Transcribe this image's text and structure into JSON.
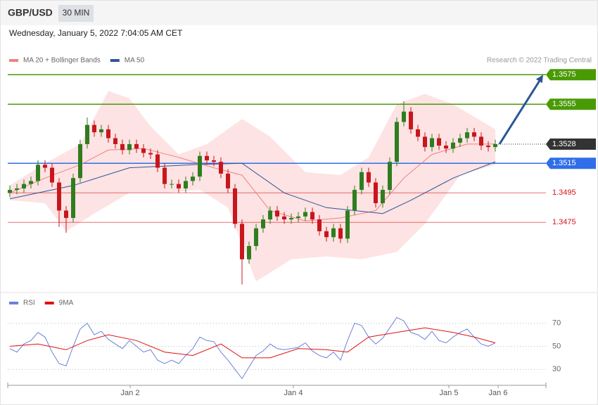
{
  "header": {
    "symbol": "GBP/USD",
    "interval": "30 MIN",
    "timestamp": "Wednesday, January 5, 2022 7:04:05 AM CET"
  },
  "chart_data": [
    {
      "type": "candlestick",
      "credit": "Research © 2022 Trading Central",
      "xlim": [
        -0.3,
        76.2
      ],
      "ylim": [
        1.3428,
        1.3597
      ],
      "xticks": [
        {
          "value": 17.1,
          "label": "Jan 2"
        },
        {
          "value": 40.3,
          "label": "Jan 4"
        },
        {
          "value": 62.4,
          "label": "Jan 5"
        },
        {
          "value": 69.4,
          "label": "Jan 6"
        }
      ],
      "up_color": "#2f7d1f",
      "down_color": "#c8161d",
      "candles": {
        "open": [
          1.3495,
          1.3497,
          1.3498,
          1.3501,
          1.3503,
          1.3514,
          1.3512,
          1.3502,
          1.3483,
          1.3478,
          1.3505,
          1.3528,
          1.3541,
          1.3536,
          1.3538,
          1.3532,
          1.3528,
          1.3524,
          1.3528,
          1.3525,
          1.3522,
          1.3521,
          1.3512,
          1.3501,
          1.3501,
          1.3498,
          1.3503,
          1.3506,
          1.352,
          1.3517,
          1.3516,
          1.3508,
          1.3498,
          1.3474,
          1.345,
          1.3459,
          1.3471,
          1.3477,
          1.3483,
          1.3479,
          1.3477,
          1.3478,
          1.3479,
          1.3482,
          1.3477,
          1.3469,
          1.3465,
          1.3471,
          1.3464,
          1.3483,
          1.3497,
          1.3509,
          1.3502,
          1.3488,
          1.3497,
          1.3516,
          1.3543,
          1.355,
          1.3538,
          1.3533,
          1.3526,
          1.3532,
          1.3527,
          1.3525,
          1.3529,
          1.3532,
          1.3536,
          1.3533,
          1.3527,
          1.3526
        ],
        "high": [
          1.35,
          1.3501,
          1.3504,
          1.3506,
          1.3517,
          1.3517,
          1.3515,
          1.3505,
          1.3486,
          1.3508,
          1.3531,
          1.3546,
          1.3544,
          1.3541,
          1.3541,
          1.3535,
          1.3531,
          1.3531,
          1.3531,
          1.3528,
          1.3525,
          1.3524,
          1.3515,
          1.3504,
          1.3504,
          1.3506,
          1.3509,
          1.3523,
          1.3523,
          1.352,
          1.3519,
          1.3511,
          1.3501,
          1.3477,
          1.3462,
          1.3474,
          1.348,
          1.3486,
          1.3486,
          1.3482,
          1.3481,
          1.3482,
          1.3485,
          1.3485,
          1.348,
          1.3472,
          1.3474,
          1.3474,
          1.3486,
          1.35,
          1.3512,
          1.3512,
          1.3505,
          1.35,
          1.3519,
          1.3546,
          1.3557,
          1.3553,
          1.3541,
          1.3536,
          1.3535,
          1.3535,
          1.353,
          1.3532,
          1.3535,
          1.3539,
          1.3539,
          1.3536,
          1.353,
          1.3531
        ],
        "low": [
          1.3492,
          1.3494,
          1.3495,
          1.3498,
          1.35,
          1.3509,
          1.3499,
          1.3472,
          1.3468,
          1.3475,
          1.3502,
          1.3525,
          1.3533,
          1.3533,
          1.3529,
          1.3525,
          1.3521,
          1.3521,
          1.3522,
          1.3519,
          1.3518,
          1.3509,
          1.3498,
          1.3498,
          1.3495,
          1.3495,
          1.35,
          1.3503,
          1.3514,
          1.3513,
          1.3505,
          1.3495,
          1.3471,
          1.3433,
          1.3447,
          1.3456,
          1.3468,
          1.3474,
          1.3476,
          1.3474,
          1.3474,
          1.3475,
          1.3476,
          1.3474,
          1.3466,
          1.3462,
          1.3462,
          1.3461,
          1.3461,
          1.348,
          1.3494,
          1.3499,
          1.3485,
          1.3485,
          1.3494,
          1.3513,
          1.354,
          1.3535,
          1.353,
          1.3523,
          1.3523,
          1.3524,
          1.3522,
          1.3522,
          1.3526,
          1.3529,
          1.353,
          1.3524,
          1.3523,
          1.3523
        ],
        "close": [
          1.3497,
          1.3498,
          1.3501,
          1.3503,
          1.3514,
          1.3512,
          1.3502,
          1.3483,
          1.3478,
          1.3505,
          1.3528,
          1.3541,
          1.3536,
          1.3538,
          1.3532,
          1.3528,
          1.3524,
          1.3528,
          1.3525,
          1.3522,
          1.3521,
          1.3512,
          1.3501,
          1.3501,
          1.3498,
          1.3503,
          1.3506,
          1.352,
          1.3517,
          1.3516,
          1.3508,
          1.3498,
          1.3474,
          1.345,
          1.3459,
          1.3471,
          1.3477,
          1.3483,
          1.3479,
          1.3477,
          1.3478,
          1.3479,
          1.3482,
          1.3477,
          1.3469,
          1.3465,
          1.3471,
          1.3464,
          1.3483,
          1.3497,
          1.3509,
          1.3502,
          1.3488,
          1.3497,
          1.3516,
          1.3543,
          1.355,
          1.3538,
          1.3533,
          1.3526,
          1.3532,
          1.3527,
          1.3525,
          1.3529,
          1.3532,
          1.3536,
          1.3533,
          1.3527,
          1.3526,
          1.3528
        ]
      },
      "series": [
        {
          "name": "MA 20 + Bollinger Bands",
          "color": "#f08080",
          "x": [
            0,
            5,
            10,
            14,
            19,
            24,
            29,
            33,
            37,
            42,
            47,
            52,
            56,
            60,
            65,
            69
          ],
          "values": [
            1.3495,
            1.3505,
            1.3514,
            1.3524,
            1.3525,
            1.3519,
            1.3512,
            1.3507,
            1.3483,
            1.3476,
            1.3478,
            1.3483,
            1.3505,
            1.3521,
            1.3528,
            1.3528
          ]
        },
        {
          "name": "MA 50",
          "color": "#2d5597",
          "x": [
            0,
            9,
            17,
            26,
            33,
            39,
            45,
            49,
            53,
            57,
            63,
            69
          ],
          "values": [
            1.3491,
            1.35,
            1.3512,
            1.3514,
            1.3515,
            1.3495,
            1.3485,
            1.3483,
            1.3481,
            1.349,
            1.3505,
            1.3516
          ]
        }
      ],
      "bands": {
        "color": "#fde3e3",
        "upper": {
          "x": [
            0,
            5,
            10,
            14,
            17,
            20,
            24,
            28,
            33,
            37,
            42,
            47,
            51,
            55,
            59,
            63,
            69
          ],
          "values": [
            1.35,
            1.3515,
            1.3528,
            1.3564,
            1.3559,
            1.354,
            1.3521,
            1.3528,
            1.3545,
            1.3533,
            1.3509,
            1.3507,
            1.3519,
            1.3555,
            1.3562,
            1.3555,
            1.3538
          ]
        },
        "lower": {
          "x": [
            0,
            5,
            8,
            12,
            17,
            22,
            27,
            31,
            35,
            40,
            45,
            50,
            55,
            59,
            64,
            69
          ],
          "values": [
            1.349,
            1.3488,
            1.3469,
            1.3481,
            1.3495,
            1.3495,
            1.3497,
            1.3485,
            1.3435,
            1.345,
            1.3452,
            1.345,
            1.3455,
            1.3474,
            1.3507,
            1.3514
          ]
        }
      },
      "levels": [
        {
          "value": 1.3575,
          "color": "#4a9a06",
          "box": true
        },
        {
          "value": 1.3555,
          "color": "#4a9a06",
          "box": true
        },
        {
          "value": 1.3515,
          "color": "#2f6ee8",
          "box": true
        },
        {
          "value": 1.3495,
          "color": "#d9141b",
          "box": false
        },
        {
          "value": 1.3475,
          "color": "#d9141b",
          "box": false
        }
      ],
      "current_price": 1.3528,
      "current_color": "#333333",
      "arrow_color": "#2d5597"
    },
    {
      "type": "line",
      "xlim": [
        -0.3,
        76.2
      ],
      "ylim": [
        18,
        82
      ],
      "yticks": [
        30,
        50,
        70
      ],
      "series": [
        {
          "name": "RSI",
          "color": "#6b82d8",
          "x": [
            0,
            1,
            2,
            3,
            4,
            5,
            6,
            7,
            8,
            9,
            10,
            11,
            12,
            13,
            14,
            15,
            16,
            17,
            18,
            19,
            20,
            21,
            22,
            23,
            24,
            25,
            26,
            27,
            28,
            29,
            30,
            31,
            32,
            33,
            34,
            35,
            36,
            37,
            38,
            39,
            40,
            41,
            42,
            43,
            44,
            45,
            46,
            47,
            48,
            49,
            50,
            51,
            52,
            53,
            54,
            55,
            56,
            57,
            58,
            59,
            60,
            61,
            62,
            63,
            64,
            65,
            66,
            67,
            68,
            69
          ],
          "values": [
            48,
            45,
            52,
            55,
            62,
            58,
            45,
            35,
            33,
            50,
            65,
            70,
            60,
            63,
            56,
            52,
            48,
            55,
            50,
            45,
            47,
            38,
            35,
            38,
            35,
            42,
            48,
            58,
            55,
            54,
            45,
            38,
            30,
            22,
            32,
            42,
            46,
            52,
            48,
            47,
            48,
            49,
            53,
            46,
            42,
            40,
            45,
            38,
            55,
            70,
            68,
            58,
            52,
            57,
            66,
            75,
            72,
            62,
            60,
            56,
            63,
            55,
            53,
            58,
            62,
            65,
            58,
            52,
            50,
            53
          ]
        },
        {
          "name": "9MA",
          "color": "#e01010",
          "x": [
            0,
            4,
            8,
            11,
            14,
            18,
            22,
            26,
            30,
            33,
            37,
            41,
            45,
            48,
            51,
            55,
            59,
            63,
            66,
            69
          ],
          "values": [
            50,
            52,
            47,
            55,
            60,
            55,
            45,
            42,
            52,
            40,
            40,
            48,
            47,
            45,
            58,
            62,
            66,
            62,
            58,
            53
          ]
        }
      ]
    }
  ]
}
